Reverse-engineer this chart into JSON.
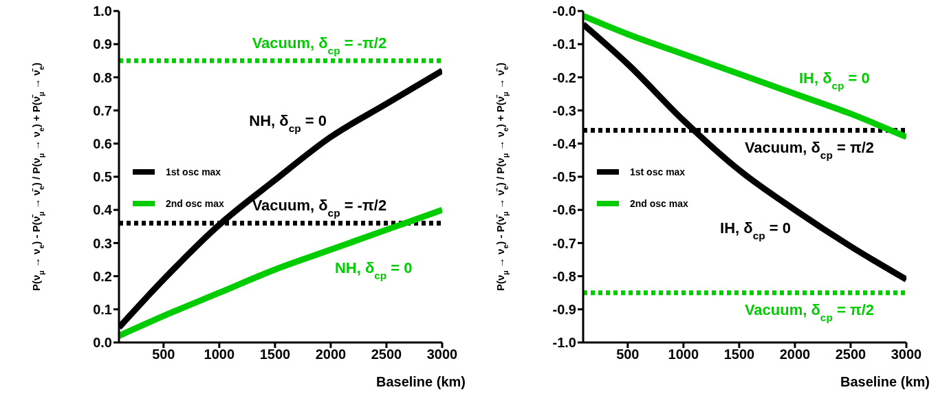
{
  "chart_data": [
    {
      "type": "line",
      "ylabel": "P(ν$_{μ}$ → ν$_{e}$) - P(ν̄$_{μ}$ → ν̄$_{e}$) / P(ν$_{μ}$ → ν$_{e}$) + P(ν̄$_{μ}$ → ν̄$_{e}$)",
      "xlabel": "Baseline (km)",
      "xlim": [
        100,
        3000
      ],
      "xticks": [
        500,
        1000,
        1500,
        2000,
        2500,
        3000
      ],
      "ylim": [
        0,
        1
      ],
      "yticks": [
        {
          "value": 0,
          "label": "0.0"
        },
        0.1,
        0.2,
        0.3,
        0.4,
        0.5,
        0.6,
        0.7,
        0.8,
        0.9,
        {
          "value": 1,
          "label": "1.0"
        }
      ],
      "legend": "left",
      "grid": false,
      "x": [
        100,
        500,
        1000,
        1500,
        2000,
        2500,
        3000
      ],
      "series": [
        {
          "name": "1st osc max",
          "color": "#000000",
          "values": [
            0.045,
            0.19,
            0.355,
            0.49,
            0.62,
            0.72,
            0.82
          ]
        },
        {
          "name": "2nd osc max",
          "color": "#00cc00",
          "values": [
            0.02,
            0.08,
            0.15,
            0.22,
            0.28,
            0.34,
            0.4
          ]
        }
      ],
      "annotations": [
        "NH, δ$_{cp}$ = 0",
        "NH, δ$_{cp}$ = 0"
      ],
      "ref_lines": [
        {
          "axis": "y",
          "value": 0.36,
          "label": "Vacuum, δ$_{cp}$ = -π/2",
          "color": "#000000",
          "line_style": "dotted"
        },
        {
          "axis": "y",
          "value": 0.85,
          "label": "Vacuum, δ$_{cp}$ = -π/2",
          "color": "#00cc00",
          "line_style": "dotted"
        }
      ]
    },
    {
      "type": "line",
      "ylabel": "P(ν$_{μ}$ → ν$_{e}$) - P(ν̄$_{μ}$ → ν̄$_{e}$) / P(ν$_{μ}$ → ν$_{e}$) + P(ν̄$_{μ}$ → ν̄$_{e}$)",
      "xlabel": "Baseline (km)",
      "xlim": [
        100,
        3000
      ],
      "xticks": [
        500,
        1000,
        1500,
        2000,
        2500,
        3000
      ],
      "ylim": [
        -1,
        0
      ],
      "yticks": [
        {
          "value": -1,
          "label": "-1.0"
        },
        -0.9,
        -0.8,
        -0.7,
        -0.6,
        -0.5,
        -0.4,
        -0.3,
        -0.2,
        -0.1,
        {
          "value": 0,
          "label": "-0.0"
        }
      ],
      "legend": "left",
      "grid": false,
      "x": [
        100,
        500,
        1000,
        1500,
        2000,
        2500,
        3000
      ],
      "series": [
        {
          "name": "1st osc max",
          "color": "#000000",
          "values": [
            -0.04,
            -0.16,
            -0.33,
            -0.48,
            -0.6,
            -0.71,
            -0.81
          ]
        },
        {
          "name": "2nd osc max",
          "color": "#00cc00",
          "values": [
            -0.015,
            -0.07,
            -0.13,
            -0.19,
            -0.25,
            -0.31,
            -0.38
          ]
        }
      ],
      "annotations": [
        "IH, δ$_{cp}$ = 0",
        "IH, δ$_{cp}$ = 0"
      ],
      "ref_lines": [
        {
          "axis": "y",
          "value": -0.36,
          "label": "Vacuum, δ$_{cp}$ = π/2",
          "color": "#000000",
          "line_style": "dotted"
        },
        {
          "axis": "y",
          "value": -0.85,
          "label": "Vacuum, δ$_{cp}$ = π/2",
          "color": "#00cc00",
          "line_style": "dotted"
        }
      ]
    }
  ]
}
